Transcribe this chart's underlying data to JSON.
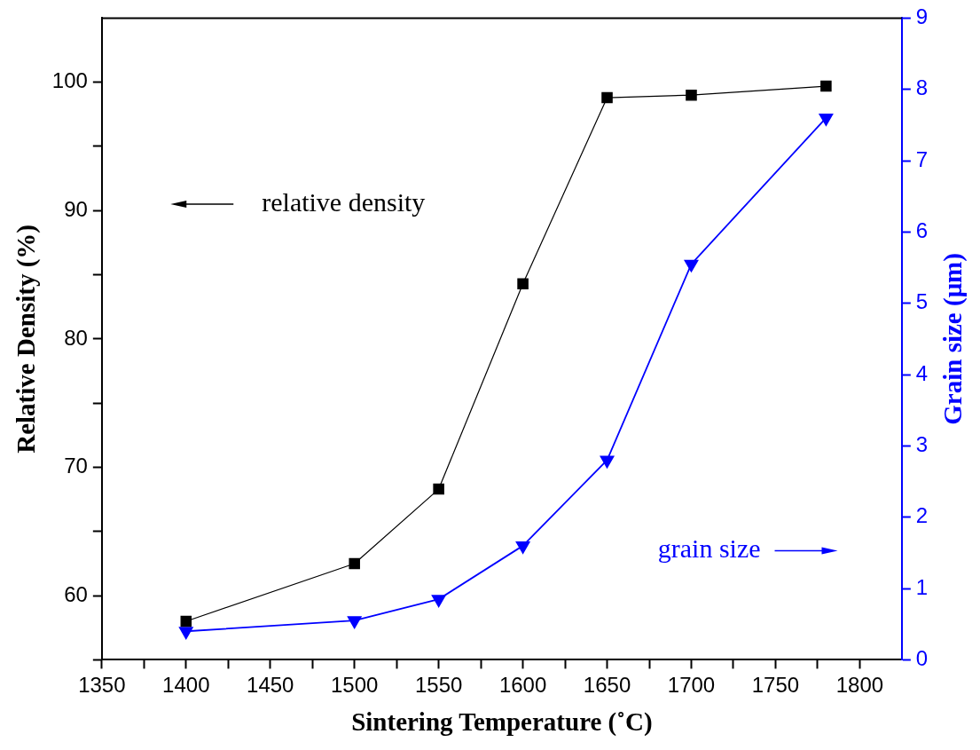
{
  "chart_data": {
    "type": "line",
    "xlabel": "Sintering Temperature (˚C)",
    "ylabel": "Relative Density (%)",
    "y2label": "Grain size (μm)",
    "x": [
      1400,
      1500,
      1550,
      1600,
      1650,
      1700,
      1780
    ],
    "series": [
      {
        "color": "#000000",
        "marker": "square",
        "values": [
          58.0,
          62.5,
          68.3,
          84.3,
          98.8,
          99.0,
          99.7
        ]
      },
      {
        "color": "#0000ff",
        "marker": "triangle",
        "axis": "y2",
        "values": [
          0.4,
          0.55,
          0.85,
          1.6,
          2.8,
          5.55,
          7.6
        ]
      }
    ],
    "xlim": [
      1350,
      1825
    ],
    "xticks": [
      1350,
      {
        "value": 1375,
        "label": null
      },
      1400,
      {
        "value": 1425,
        "label": null
      },
      1450,
      {
        "value": 1475,
        "label": null
      },
      1500,
      {
        "value": 1525,
        "label": null
      },
      1550,
      {
        "value": 1575,
        "label": null
      },
      1600,
      {
        "value": 1625,
        "label": null
      },
      1650,
      {
        "value": 1675,
        "label": null
      },
      1700,
      {
        "value": 1725,
        "label": null
      },
      1750,
      {
        "value": 1775,
        "label": null
      },
      1800
    ],
    "ylim": [
      55,
      105
    ],
    "yticks": [
      {
        "value": 55,
        "label": null
      },
      60,
      {
        "value": 65,
        "label": null
      },
      70,
      {
        "value": 75,
        "label": null
      },
      80,
      {
        "value": 85,
        "label": null
      },
      90,
      {
        "value": 95,
        "label": null
      },
      100
    ],
    "y2lim": [
      0,
      9
    ],
    "y2ticks": [
      0,
      1,
      2,
      3,
      4,
      5,
      6,
      7,
      8,
      9
    ],
    "annotations": [
      "relative density",
      "grain size"
    ],
    "grid": false,
    "legend": false,
    "line_style": "solid"
  }
}
